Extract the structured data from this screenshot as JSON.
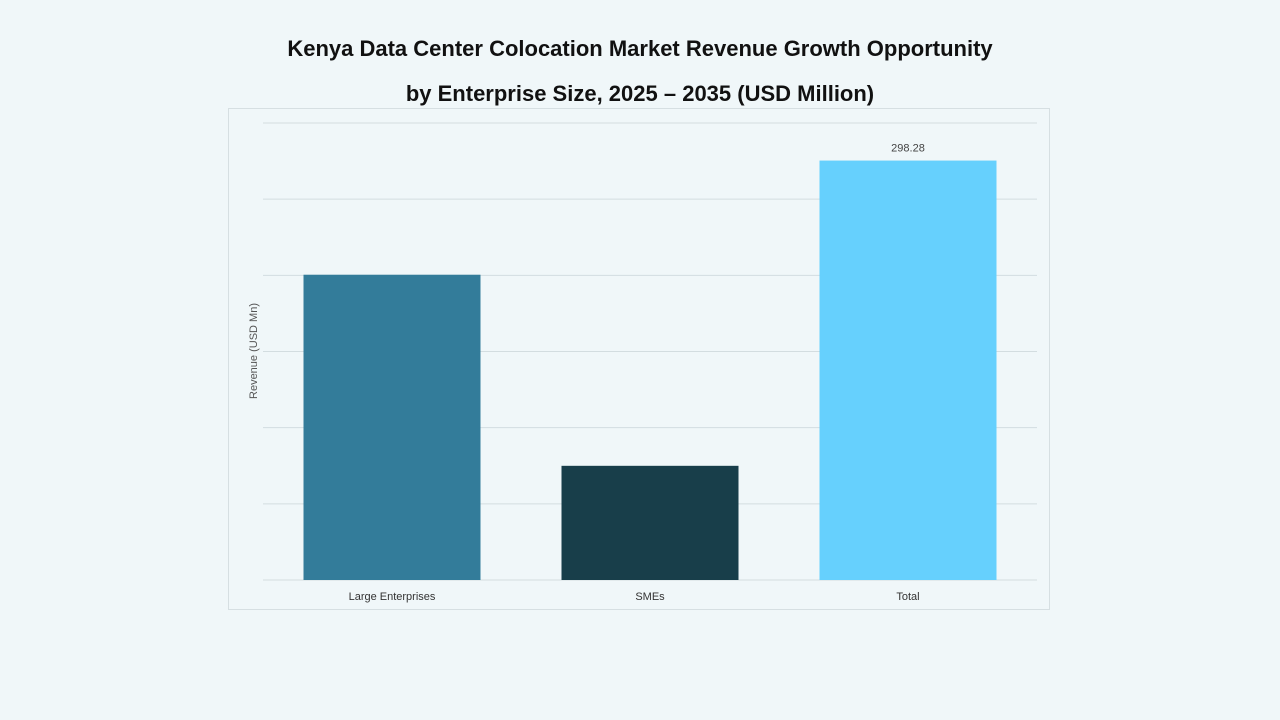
{
  "chart_data": {
    "type": "bar",
    "title": "Kenya Data Center Colocation Market Revenue Growth Opportunity",
    "subtitle": "by Enterprise Size, 2025 – 2035 (USD Million)",
    "xlabel": "",
    "ylabel": "Revenue (USD Mn)",
    "categories": [
      "Large Enterprises",
      "SMEs",
      "Total"
    ],
    "values": [
      217.1,
      81.2,
      298.28
    ],
    "data_labels": [
      "",
      "",
      "298.28"
    ],
    "colors": [
      "#337c9a",
      "#183e4a",
      "#66d0fd"
    ],
    "ylim": [
      0,
      325
    ],
    "grid": true,
    "legend": "none"
  }
}
